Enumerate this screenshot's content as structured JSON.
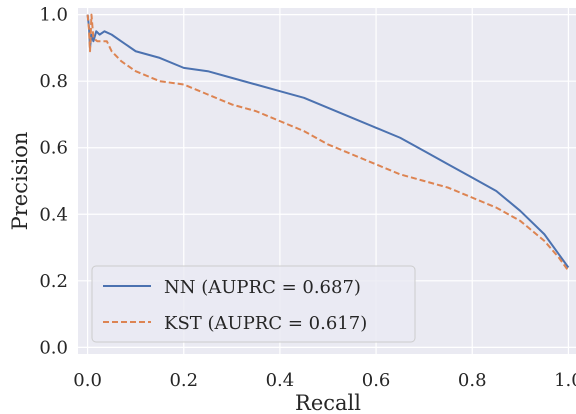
{
  "chart_data": {
    "type": "line",
    "xlabel": "Recall",
    "ylabel": "Precision",
    "xlim": [
      -0.02,
      1.02
    ],
    "ylim": [
      -0.02,
      1.02
    ],
    "x_ticks": [
      "0.0",
      "0.2",
      "0.4",
      "0.6",
      "0.8",
      "1.0"
    ],
    "y_ticks": [
      "0.0",
      "0.2",
      "0.4",
      "0.6",
      "0.8",
      "1.0"
    ],
    "grid": true,
    "background": "#eaeaf2",
    "legend_position": "lower-left",
    "series": [
      {
        "name": "NN (AUPRC = 0.687)",
        "color": "#4c72b0",
        "style": "solid",
        "points": [
          [
            0.0,
            1.0
          ],
          [
            0.003,
            0.96
          ],
          [
            0.005,
            0.9
          ],
          [
            0.008,
            0.94
          ],
          [
            0.012,
            0.92
          ],
          [
            0.018,
            0.95
          ],
          [
            0.025,
            0.94
          ],
          [
            0.035,
            0.95
          ],
          [
            0.05,
            0.94
          ],
          [
            0.07,
            0.92
          ],
          [
            0.1,
            0.89
          ],
          [
            0.15,
            0.87
          ],
          [
            0.2,
            0.84
          ],
          [
            0.25,
            0.83
          ],
          [
            0.3,
            0.81
          ],
          [
            0.35,
            0.79
          ],
          [
            0.4,
            0.77
          ],
          [
            0.45,
            0.75
          ],
          [
            0.5,
            0.72
          ],
          [
            0.55,
            0.69
          ],
          [
            0.6,
            0.66
          ],
          [
            0.65,
            0.63
          ],
          [
            0.7,
            0.59
          ],
          [
            0.75,
            0.55
          ],
          [
            0.8,
            0.51
          ],
          [
            0.85,
            0.47
          ],
          [
            0.9,
            0.41
          ],
          [
            0.95,
            0.34
          ],
          [
            0.98,
            0.28
          ],
          [
            1.0,
            0.24
          ]
        ]
      },
      {
        "name": "KST (AUPRC = 0.617)",
        "color": "#dd8452",
        "style": "dashed",
        "points": [
          [
            0.0,
            1.0
          ],
          [
            0.003,
            0.95
          ],
          [
            0.005,
            0.89
          ],
          [
            0.008,
            1.0
          ],
          [
            0.012,
            0.93
          ],
          [
            0.02,
            0.92
          ],
          [
            0.03,
            0.92
          ],
          [
            0.04,
            0.92
          ],
          [
            0.05,
            0.89
          ],
          [
            0.07,
            0.86
          ],
          [
            0.1,
            0.83
          ],
          [
            0.15,
            0.8
          ],
          [
            0.2,
            0.79
          ],
          [
            0.25,
            0.76
          ],
          [
            0.3,
            0.73
          ],
          [
            0.35,
            0.71
          ],
          [
            0.4,
            0.68
          ],
          [
            0.45,
            0.65
          ],
          [
            0.5,
            0.61
          ],
          [
            0.55,
            0.58
          ],
          [
            0.6,
            0.55
          ],
          [
            0.65,
            0.52
          ],
          [
            0.7,
            0.5
          ],
          [
            0.75,
            0.48
          ],
          [
            0.8,
            0.45
          ],
          [
            0.85,
            0.42
          ],
          [
            0.9,
            0.38
          ],
          [
            0.95,
            0.32
          ],
          [
            0.98,
            0.27
          ],
          [
            1.0,
            0.23
          ]
        ]
      }
    ]
  }
}
